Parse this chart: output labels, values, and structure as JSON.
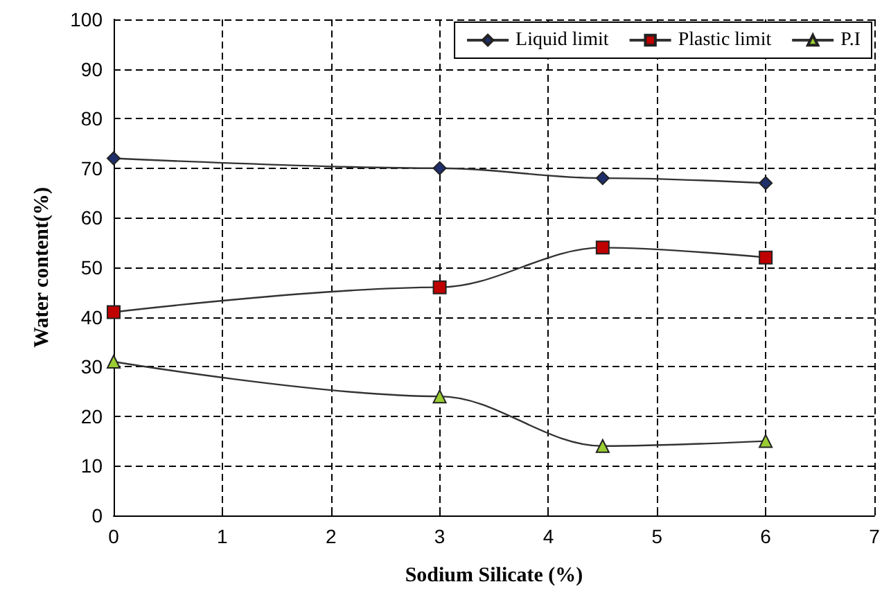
{
  "chart_data": {
    "type": "line",
    "xlabel": "Sodium Silicate (%)",
    "ylabel": "Water content(%)",
    "x": [
      0,
      3,
      4.5,
      6
    ],
    "series": [
      {
        "name": "Liquid limit",
        "color": "#1f2f6b",
        "marker": "diamond",
        "values": [
          72,
          70,
          68,
          67
        ]
      },
      {
        "name": "Plastic limit",
        "color": "#c00000",
        "marker": "square",
        "values": [
          41,
          46,
          54,
          52
        ]
      },
      {
        "name": "P.I",
        "color": "#9acd32",
        "marker": "triangle",
        "values": [
          31,
          24,
          14,
          15
        ]
      }
    ],
    "xlim": [
      0,
      7
    ],
    "xticks": [
      0,
      1,
      2,
      3,
      4,
      5,
      6,
      7
    ],
    "ylim": [
      0,
      100
    ],
    "yticks": [
      0,
      10,
      20,
      30,
      40,
      50,
      60,
      70,
      80,
      90,
      100
    ],
    "grid": true,
    "legend": "top right",
    "line_style": "solid"
  }
}
